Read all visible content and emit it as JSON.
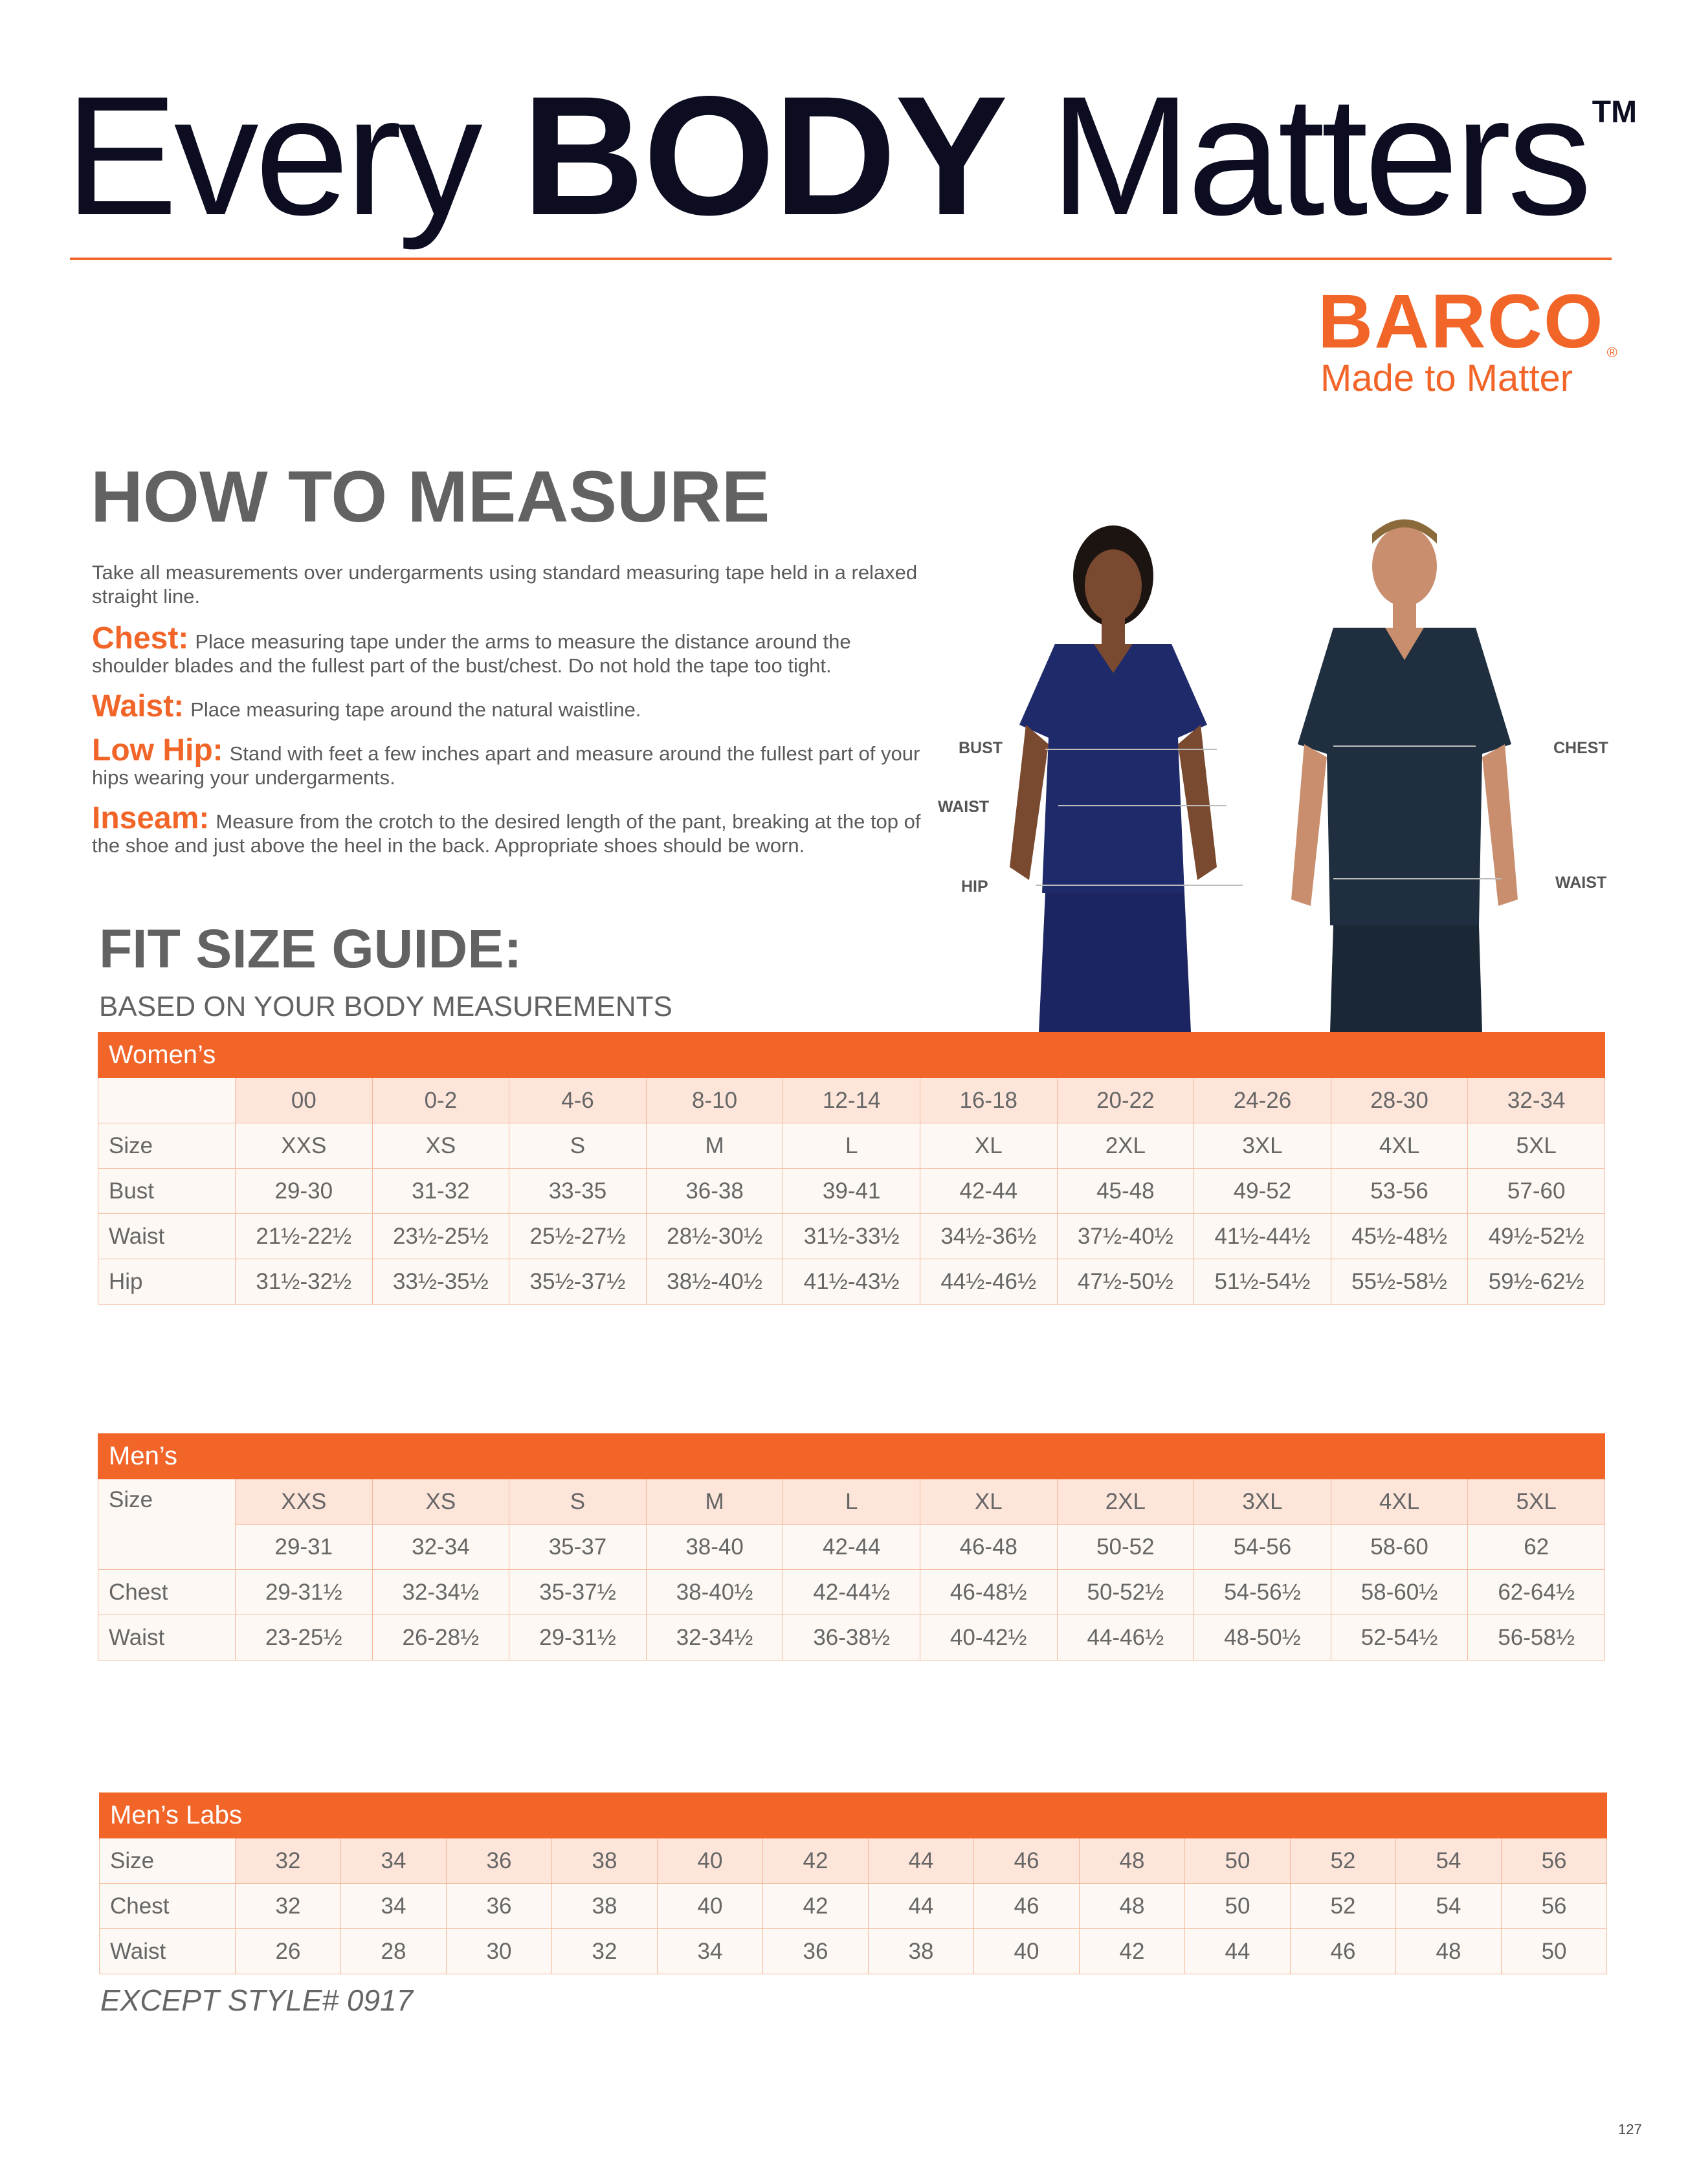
{
  "header": {
    "title_pre": "Every",
    "title_bold": "BODY",
    "title_post": "Matters",
    "trademark": "TM"
  },
  "brand": {
    "name": "BARCO",
    "registered": "®",
    "tagline": "Made to Matter",
    "color": "#f26529"
  },
  "how_to_measure": {
    "title": "HOW TO MEASURE",
    "intro": "Take all measurements over undergarments using standard measuring tape held in a relaxed straight line.",
    "items": [
      {
        "key": "Chest:",
        "text": "Place measuring tape under the arms to measure the distance around the shoulder blades and the fullest part of the bust/chest. Do not hold the tape too tight."
      },
      {
        "key": "Waist:",
        "text": "Place measuring tape around the natural waistline."
      },
      {
        "key": "Low Hip:",
        "text": "Stand with feet a few inches apart and measure around the fullest part of your hips wearing your undergarments."
      },
      {
        "key": "Inseam:",
        "text": "Measure from the crotch to the desired length of the pant, breaking at the top of the shoe and just above the heel in the back. Appropriate shoes should be worn."
      }
    ]
  },
  "figure_labels": {
    "bust": "BUST",
    "waist_w": "WAIST",
    "hip": "HIP",
    "chest": "CHEST",
    "waist_m": "WAIST"
  },
  "fit_guide": {
    "title": "FIT SIZE GUIDE:",
    "subtitle": "BASED ON YOUR BODY MEASUREMENTS"
  },
  "womens": {
    "title": "Women’s",
    "rows": [
      [
        "",
        "00",
        "0-2",
        "4-6",
        "8-10",
        "12-14",
        "16-18",
        "20-22",
        "24-26",
        "28-30",
        "32-34"
      ],
      [
        "Size",
        "XXS",
        "XS",
        "S",
        "M",
        "L",
        "XL",
        "2XL",
        "3XL",
        "4XL",
        "5XL"
      ],
      [
        "Bust",
        "29-30",
        "31-32",
        "33-35",
        "36-38",
        "39-41",
        "42-44",
        "45-48",
        "49-52",
        "53-56",
        "57-60"
      ],
      [
        "Waist",
        "21½-22½",
        "23½-25½",
        "25½-27½",
        "28½-30½",
        "31½-33½",
        "34½-36½",
        "37½-40½",
        "41½-44½",
        "45½-48½",
        "49½-52½"
      ],
      [
        "Hip",
        "31½-32½",
        "33½-35½",
        "35½-37½",
        "38½-40½",
        "41½-43½",
        "44½-46½",
        "47½-50½",
        "51½-54½",
        "55½-58½",
        "59½-62½"
      ]
    ]
  },
  "mens": {
    "title": "Men’s",
    "size_label": "Size",
    "rows": [
      [
        "XXS",
        "XS",
        "S",
        "M",
        "L",
        "XL",
        "2XL",
        "3XL",
        "4XL",
        "5XL"
      ],
      [
        "29-31",
        "32-34",
        "35-37",
        "38-40",
        "42-44",
        "46-48",
        "50-52",
        "54-56",
        "58-60",
        "62"
      ]
    ],
    "body_rows": [
      [
        "Chest",
        "29-31½",
        "32-34½",
        "35-37½",
        "38-40½",
        "42-44½",
        "46-48½",
        "50-52½",
        "54-56½",
        "58-60½",
        "62-64½"
      ],
      [
        "Waist",
        "23-25½",
        "26-28½",
        "29-31½",
        "32-34½",
        "36-38½",
        "40-42½",
        "44-46½",
        "48-50½",
        "52-54½",
        "56-58½"
      ]
    ]
  },
  "mens_labs": {
    "title": "Men’s Labs",
    "rows": [
      [
        "Size",
        "32",
        "34",
        "36",
        "38",
        "40",
        "42",
        "44",
        "46",
        "48",
        "50",
        "52",
        "54",
        "56"
      ],
      [
        "Chest",
        "32",
        "34",
        "36",
        "38",
        "40",
        "42",
        "44",
        "46",
        "48",
        "50",
        "52",
        "54",
        "56"
      ],
      [
        "Waist",
        "26",
        "28",
        "30",
        "32",
        "34",
        "36",
        "38",
        "40",
        "42",
        "44",
        "46",
        "48",
        "50"
      ]
    ],
    "note": "EXCEPT STYLE# 0917"
  },
  "page_number": "127"
}
